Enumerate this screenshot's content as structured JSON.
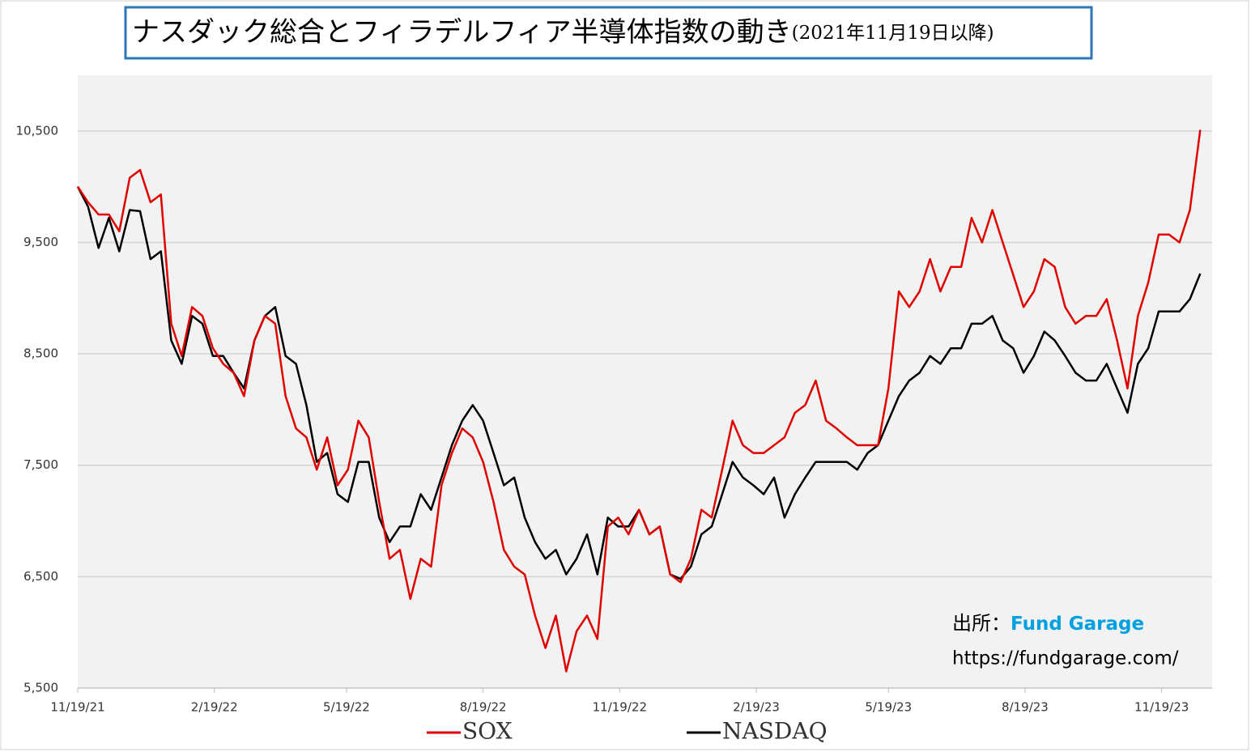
{
  "chart_data": {
    "type": "line",
    "title": "ナスダック総合とフィラデルフィア半導体指数の動き",
    "subtitle": "(2021年11月19日以降)",
    "source_label": "出所：",
    "source_name": "Fund Garage",
    "source_url": "https://fundgarage.com/",
    "x": [
      "11/19/21",
      "11/26/21",
      "12/3/21",
      "12/10/21",
      "12/17/21",
      "12/24/21",
      "12/31/21",
      "1/7/22",
      "1/14/22",
      "1/21/22",
      "1/28/22",
      "2/4/22",
      "2/11/22",
      "2/18/22",
      "2/25/22",
      "3/4/22",
      "3/11/22",
      "3/18/22",
      "3/25/22",
      "4/1/22",
      "4/8/22",
      "4/15/22",
      "4/22/22",
      "4/29/22",
      "5/6/22",
      "5/13/22",
      "5/20/22",
      "5/27/22",
      "6/3/22",
      "6/10/22",
      "6/17/22",
      "6/24/22",
      "7/1/22",
      "7/8/22",
      "7/15/22",
      "7/22/22",
      "7/29/22",
      "8/5/22",
      "8/12/22",
      "8/19/22",
      "8/26/22",
      "9/2/22",
      "9/9/22",
      "9/16/22",
      "9/23/22",
      "9/30/22",
      "10/7/22",
      "10/14/22",
      "10/21/22",
      "10/28/22",
      "11/4/22",
      "11/11/22",
      "11/18/22",
      "11/25/22",
      "12/2/22",
      "12/9/22",
      "12/16/22",
      "12/23/22",
      "12/30/22",
      "1/6/23",
      "1/13/23",
      "1/20/23",
      "1/27/23",
      "2/3/23",
      "2/10/23",
      "2/17/23",
      "2/24/23",
      "3/3/23",
      "3/10/23",
      "3/17/23",
      "3/24/23",
      "3/31/23",
      "4/7/23",
      "4/14/23",
      "4/21/23",
      "4/28/23",
      "5/5/23",
      "5/12/23",
      "5/19/23",
      "5/26/23",
      "6/2/23",
      "6/9/23",
      "6/16/23",
      "6/23/23",
      "6/30/23",
      "7/7/23",
      "7/14/23",
      "7/21/23",
      "7/28/23",
      "8/4/23",
      "8/11/23",
      "8/18/23",
      "8/25/23",
      "9/1/23",
      "9/8/23",
      "9/15/23",
      "9/22/23",
      "9/29/23",
      "10/6/23",
      "10/13/23",
      "10/20/23",
      "10/27/23",
      "11/3/23",
      "11/10/23",
      "11/17/23",
      "11/24/23",
      "12/1/23",
      "12/8/23",
      "12/15/23"
    ],
    "series": [
      {
        "name": "SOX",
        "color": "#e00000",
        "values": [
          10000,
          9860,
          9750,
          9750,
          9600,
          10080,
          10150,
          9860,
          9930,
          8770,
          8480,
          8920,
          8840,
          8550,
          8410,
          8330,
          8120,
          8620,
          8840,
          8770,
          8120,
          7830,
          7750,
          7460,
          7750,
          7320,
          7460,
          7900,
          7750,
          7170,
          6660,
          6740,
          6300,
          6660,
          6590,
          7320,
          7610,
          7830,
          7750,
          7530,
          7170,
          6740,
          6590,
          6520,
          6150,
          5860,
          6150,
          5650,
          6010,
          6150,
          5940,
          6950,
          7030,
          6880,
          7100,
          6880,
          6950,
          6520,
          6450,
          6660,
          7100,
          7030,
          7460,
          7900,
          7680,
          7610,
          7610,
          7680,
          7750,
          7970,
          8040,
          8260,
          7900,
          7830,
          7750,
          7680,
          7680,
          7680,
          8190,
          9060,
          8920,
          9060,
          9350,
          9060,
          9280,
          9280,
          9720,
          9500,
          9790,
          9500,
          9210,
          8920,
          9060,
          9350,
          9280,
          8920,
          8770,
          8840,
          8840,
          8990,
          8620,
          8190,
          8840,
          9140,
          9570,
          9570,
          9500,
          9790,
          10510
        ]
      },
      {
        "name": "NASDAQ",
        "color": "#000000",
        "values": [
          10000,
          9820,
          9450,
          9720,
          9420,
          9790,
          9780,
          9350,
          9420,
          8620,
          8410,
          8840,
          8770,
          8480,
          8480,
          8330,
          8190,
          8620,
          8840,
          8920,
          8480,
          8410,
          8040,
          7530,
          7610,
          7240,
          7170,
          7530,
          7530,
          7030,
          6810,
          6950,
          6950,
          7240,
          7100,
          7390,
          7680,
          7900,
          8040,
          7900,
          7610,
          7320,
          7390,
          7030,
          6810,
          6660,
          6740,
          6520,
          6660,
          6880,
          6520,
          7030,
          6950,
          6950,
          7100,
          6880,
          6950,
          6520,
          6480,
          6590,
          6880,
          6950,
          7240,
          7530,
          7390,
          7320,
          7240,
          7390,
          7030,
          7240,
          7390,
          7530,
          7530,
          7530,
          7530,
          7460,
          7610,
          7680,
          7900,
          8120,
          8260,
          8330,
          8480,
          8410,
          8550,
          8550,
          8770,
          8770,
          8840,
          8620,
          8550,
          8330,
          8480,
          8700,
          8620,
          8480,
          8330,
          8260,
          8260,
          8410,
          8190,
          7970,
          8410,
          8550,
          8880,
          8880,
          8880,
          8990,
          9220
        ]
      }
    ],
    "xlim": [
      "11/19/21",
      "12/23/23"
    ],
    "xticks": [
      "11/19/21",
      "2/19/22",
      "5/19/22",
      "8/19/22",
      "11/19/22",
      "2/19/23",
      "5/19/23",
      "8/19/23",
      "11/19/23"
    ],
    "ylim": [
      5500,
      11000
    ],
    "yticks": [
      {
        "value": 5500,
        "label": "5,500"
      },
      {
        "value": 6500,
        "label": "6,500"
      },
      {
        "value": 7500,
        "label": "7,500"
      },
      {
        "value": 8500,
        "label": "8,500"
      },
      {
        "value": 9500,
        "label": "9,500"
      },
      {
        "value": 10500,
        "label": "10,500"
      }
    ],
    "grid": true
  }
}
